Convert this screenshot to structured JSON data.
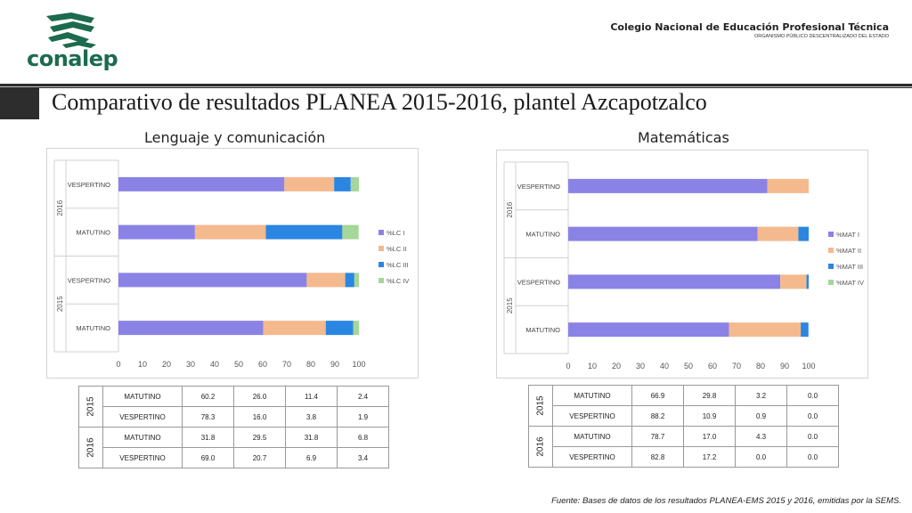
{
  "header": {
    "logo_text": "conalep",
    "institution_name": "Colegio Nacional de Educación Profesional Técnica",
    "institution_sub": "ORGANISMO PÚBLICO DESCENTRALIZADO DEL ESTADO",
    "title": "Comparativo de resultados PLANEA 2015-2016, plantel Azcapotzalco"
  },
  "colors": {
    "s1": "#8b82e6",
    "s2": "#f5b98e",
    "s3": "#2a86e0",
    "s4": "#a6d69a",
    "brand": "#1c6b4e"
  },
  "chart_data": [
    {
      "type": "bar",
      "orientation": "horizontal",
      "stacked": true,
      "title": "Lenguaje y comunicación",
      "groups": [
        {
          "year": "2016",
          "categories": [
            "VESPERTINO",
            "MATUTINO"
          ]
        },
        {
          "year": "2015",
          "categories": [
            "VESPERTINO",
            "MATUTINO"
          ]
        }
      ],
      "series": [
        {
          "name": "%LC I",
          "values": [
            69.0,
            31.8,
            78.3,
            60.2
          ]
        },
        {
          "name": "%LC II",
          "values": [
            20.7,
            29.5,
            16.0,
            26.0
          ]
        },
        {
          "name": "%LC III",
          "values": [
            6.9,
            31.8,
            3.8,
            11.4
          ]
        },
        {
          "name": "%LC IV",
          "values": [
            3.4,
            6.8,
            1.9,
            2.4
          ]
        }
      ],
      "xticks": [
        "0",
        "10",
        "20",
        "30",
        "40",
        "50",
        "60",
        "70",
        "80",
        "90",
        "100"
      ],
      "xlim": [
        0,
        100
      ],
      "legend": "right"
    },
    {
      "type": "bar",
      "orientation": "horizontal",
      "stacked": true,
      "title": "Matemáticas",
      "groups": [
        {
          "year": "2016",
          "categories": [
            "VESPERTINO",
            "MATUTINO"
          ]
        },
        {
          "year": "2015",
          "categories": [
            "VESPERTINO",
            "MATUTINO"
          ]
        }
      ],
      "series": [
        {
          "name": "%MAT I",
          "values": [
            82.8,
            78.7,
            88.2,
            66.9
          ]
        },
        {
          "name": "%MAT II",
          "values": [
            17.2,
            17.0,
            10.9,
            29.8
          ]
        },
        {
          "name": "%MAT III",
          "values": [
            0.0,
            4.3,
            0.9,
            3.2
          ]
        },
        {
          "name": "%MAT IV",
          "values": [
            0.0,
            0.0,
            0.0,
            0.0
          ]
        }
      ],
      "xticks": [
        "0",
        "10",
        "20",
        "30",
        "40",
        "50",
        "60",
        "70",
        "80",
        "90",
        "100"
      ],
      "xlim": [
        0,
        100
      ],
      "legend": "right"
    }
  ],
  "tables": [
    {
      "rows": [
        {
          "year": "2015",
          "turno": "MATUTINO",
          "values": [
            "60.2",
            "26.0",
            "11.4",
            "2.4"
          ]
        },
        {
          "year": "",
          "turno": "VESPERTINO",
          "values": [
            "78.3",
            "16.0",
            "3.8",
            "1.9"
          ]
        },
        {
          "year": "2016",
          "turno": "MATUTINO",
          "values": [
            "31.8",
            "29.5",
            "31.8",
            "6.8"
          ]
        },
        {
          "year": "",
          "turno": "VESPERTINO",
          "values": [
            "69.0",
            "20.7",
            "6.9",
            "3.4"
          ]
        }
      ]
    },
    {
      "rows": [
        {
          "year": "2015",
          "turno": "MATUTINO",
          "values": [
            "66.9",
            "29.8",
            "3.2",
            "0.0"
          ]
        },
        {
          "year": "",
          "turno": "VESPERTINO",
          "values": [
            "88.2",
            "10.9",
            "0.9",
            "0.0"
          ]
        },
        {
          "year": "2016",
          "turno": "MATUTINO",
          "values": [
            "78.7",
            "17.0",
            "4.3",
            "0.0"
          ]
        },
        {
          "year": "",
          "turno": "VESPERTINO",
          "values": [
            "82.8",
            "17.2",
            "0.0",
            "0.0"
          ]
        }
      ]
    }
  ],
  "footer": "Fuente: Bases de datos de los resultados PLANEA-EMS 2015 y 2016, emitidas por la SEMS."
}
